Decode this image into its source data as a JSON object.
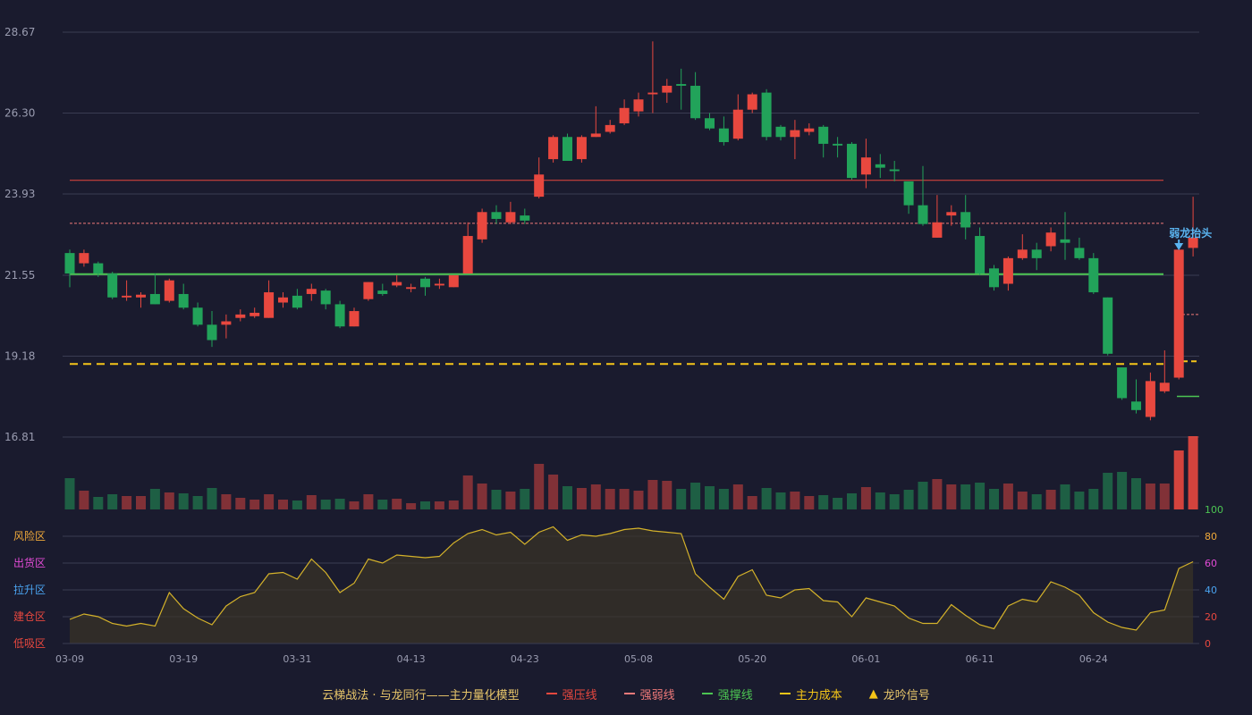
{
  "colors": {
    "background": "#1a1b2e",
    "grid": "#3a3c52",
    "up": "#e8483f",
    "down": "#22a35a",
    "pressure": "#e8483f",
    "weak": "#f07a7a",
    "support": "#4cc552",
    "cost": "#f5c518",
    "osc_line": "#d4b22a",
    "signal": "#5ab4f0",
    "axis_text": "#9a9cb0"
  },
  "chart_data": {
    "type": "candlestick",
    "title": "",
    "price_axis": {
      "ticks": [
        28.67,
        26.3,
        23.93,
        21.55,
        19.18,
        16.81
      ],
      "range": [
        16.81,
        28.67
      ]
    },
    "date_ticks": [
      {
        "label": "03-09",
        "index": 0
      },
      {
        "label": "03-19",
        "index": 8
      },
      {
        "label": "03-31",
        "index": 16
      },
      {
        "label": "04-13",
        "index": 24
      },
      {
        "label": "04-23",
        "index": 32
      },
      {
        "label": "05-08",
        "index": 40
      },
      {
        "label": "05-20",
        "index": 48
      },
      {
        "label": "06-01",
        "index": 56
      },
      {
        "label": "06-11",
        "index": 64
      },
      {
        "label": "06-24",
        "index": 72
      }
    ],
    "candles": [
      [
        22.2,
        21.6,
        22.3,
        21.2
      ],
      [
        21.9,
        22.2,
        22.3,
        21.8
      ],
      [
        21.9,
        21.6,
        21.95,
        21.5
      ],
      [
        21.6,
        20.9,
        21.65,
        20.85
      ],
      [
        20.9,
        20.95,
        21.4,
        20.8
      ],
      [
        20.9,
        20.98,
        21.05,
        20.6
      ],
      [
        21.0,
        20.7,
        21.6,
        20.7
      ],
      [
        20.8,
        21.4,
        21.45,
        20.75
      ],
      [
        21.0,
        20.6,
        21.3,
        20.55
      ],
      [
        20.6,
        20.1,
        20.75,
        20.05
      ],
      [
        20.1,
        19.65,
        20.5,
        19.45
      ],
      [
        20.1,
        20.2,
        20.4,
        19.7
      ],
      [
        20.3,
        20.4,
        20.55,
        20.2
      ],
      [
        20.35,
        20.45,
        20.6,
        20.3
      ],
      [
        20.3,
        21.05,
        21.4,
        20.3
      ],
      [
        20.75,
        20.9,
        21.05,
        20.6
      ],
      [
        20.95,
        20.6,
        21.15,
        20.55
      ],
      [
        21.0,
        21.15,
        21.3,
        20.8
      ],
      [
        21.1,
        20.7,
        21.15,
        20.55
      ],
      [
        20.7,
        20.05,
        20.8,
        20.0
      ],
      [
        20.05,
        20.5,
        20.6,
        20.05
      ],
      [
        20.85,
        21.35,
        21.35,
        20.8
      ],
      [
        21.1,
        21.0,
        21.3,
        20.95
      ],
      [
        21.25,
        21.35,
        21.55,
        21.2
      ],
      [
        21.15,
        21.2,
        21.3,
        21.05
      ],
      [
        21.45,
        21.2,
        21.5,
        20.95
      ],
      [
        21.25,
        21.3,
        21.45,
        21.15
      ],
      [
        21.2,
        21.55,
        21.55,
        21.2
      ],
      [
        21.6,
        22.7,
        23.1,
        21.6
      ],
      [
        22.6,
        23.4,
        23.5,
        22.5
      ],
      [
        23.4,
        23.2,
        23.6,
        23.05
      ],
      [
        23.1,
        23.4,
        23.7,
        23.05
      ],
      [
        23.3,
        23.15,
        23.5,
        23.05
      ],
      [
        23.85,
        24.5,
        25.0,
        23.8
      ],
      [
        24.95,
        25.6,
        25.65,
        24.85
      ],
      [
        25.6,
        24.9,
        25.7,
        24.9
      ],
      [
        24.95,
        25.6,
        25.65,
        24.85
      ],
      [
        25.6,
        25.7,
        26.5,
        25.6
      ],
      [
        25.75,
        25.95,
        26.1,
        25.7
      ],
      [
        26.0,
        26.45,
        26.7,
        25.95
      ],
      [
        26.35,
        26.7,
        26.9,
        26.2
      ],
      [
        26.85,
        26.9,
        28.4,
        26.3
      ],
      [
        26.9,
        27.1,
        27.3,
        26.6
      ],
      [
        27.15,
        27.1,
        27.6,
        26.4
      ],
      [
        27.1,
        26.15,
        27.5,
        26.1
      ],
      [
        26.15,
        25.85,
        26.3,
        25.8
      ],
      [
        25.85,
        25.45,
        26.2,
        25.35
      ],
      [
        25.55,
        26.4,
        26.85,
        25.5
      ],
      [
        26.4,
        26.85,
        26.9,
        26.3
      ],
      [
        26.9,
        25.6,
        27.0,
        25.5
      ],
      [
        25.9,
        25.6,
        25.95,
        25.5
      ],
      [
        25.6,
        25.8,
        26.1,
        24.95
      ],
      [
        25.75,
        25.85,
        26.0,
        25.65
      ],
      [
        25.9,
        25.4,
        25.95,
        25.0
      ],
      [
        25.4,
        25.35,
        25.6,
        25.0
      ],
      [
        25.4,
        24.4,
        25.45,
        24.35
      ],
      [
        24.5,
        25.0,
        25.55,
        24.1
      ],
      [
        24.8,
        24.7,
        25.1,
        24.4
      ],
      [
        24.65,
        24.6,
        24.9,
        24.3
      ],
      [
        24.3,
        23.6,
        24.3,
        23.35
      ],
      [
        23.6,
        23.05,
        24.75,
        23.0
      ],
      [
        22.65,
        23.1,
        23.9,
        22.65
      ],
      [
        23.3,
        23.4,
        23.6,
        23.0
      ],
      [
        23.4,
        22.95,
        23.9,
        22.6
      ],
      [
        22.7,
        21.6,
        22.95,
        21.55
      ],
      [
        21.75,
        21.2,
        21.85,
        21.1
      ],
      [
        21.3,
        22.05,
        22.1,
        21.1
      ],
      [
        22.05,
        22.3,
        22.75,
        22.0
      ],
      [
        22.3,
        22.05,
        22.5,
        21.7
      ],
      [
        22.4,
        22.8,
        22.95,
        22.25
      ],
      [
        22.6,
        22.5,
        23.4,
        22.0
      ],
      [
        22.35,
        22.05,
        22.65,
        22.0
      ],
      [
        22.05,
        21.05,
        22.2,
        21.0
      ],
      [
        20.9,
        19.25,
        20.9,
        19.2
      ],
      [
        18.85,
        17.95,
        18.85,
        17.9
      ],
      [
        17.85,
        17.6,
        18.5,
        17.5
      ],
      [
        17.4,
        18.45,
        18.7,
        17.3
      ],
      [
        18.15,
        18.4,
        19.35,
        18.1
      ],
      [
        18.55,
        22.3,
        22.3,
        18.5
      ],
      [
        22.35,
        22.65,
        23.85,
        22.1
      ]
    ],
    "volume": [
      3.5,
      2.1,
      1.4,
      1.7,
      1.5,
      1.5,
      2.3,
      1.9,
      1.8,
      1.5,
      2.4,
      1.7,
      1.3,
      1.1,
      1.7,
      1.1,
      1.0,
      1.6,
      1.1,
      1.2,
      0.9,
      1.7,
      1.1,
      1.2,
      0.7,
      0.9,
      0.9,
      1.0,
      3.8,
      2.9,
      2.2,
      2.0,
      2.3,
      5.1,
      3.9,
      2.6,
      2.4,
      2.8,
      2.3,
      2.3,
      2.1,
      3.3,
      3.2,
      2.3,
      3.0,
      2.6,
      2.3,
      2.8,
      1.5,
      2.4,
      1.9,
      2.0,
      1.5,
      1.6,
      1.3,
      1.8,
      2.5,
      1.9,
      1.7,
      2.2,
      3.1,
      3.4,
      2.8,
      2.8,
      3.0,
      2.3,
      2.9,
      2.0,
      1.7,
      2.2,
      2.8,
      2.0,
      2.3,
      4.1,
      4.2,
      3.5,
      2.9,
      2.9,
      6.6,
      8.2
    ],
    "oscillator": {
      "labels": [
        "风险区",
        "出货区",
        "拉升区",
        "建仓区",
        "低吸区"
      ],
      "right_ticks": [
        100,
        80,
        60,
        40,
        20,
        0
      ],
      "values": [
        18,
        22,
        20,
        15,
        13,
        15,
        13,
        38,
        26,
        19,
        14,
        28,
        35,
        38,
        52,
        53,
        48,
        63,
        53,
        38,
        45,
        63,
        60,
        66,
        65,
        64,
        65,
        75,
        82,
        85,
        81,
        83,
        74,
        83,
        87,
        77,
        81,
        80,
        82,
        85,
        86,
        84,
        83,
        82,
        52,
        42,
        33,
        50,
        55,
        36,
        34,
        40,
        41,
        32,
        31,
        20,
        34,
        31,
        28,
        19,
        15,
        15,
        29,
        21,
        14,
        11,
        28,
        33,
        31,
        46,
        42,
        36,
        23,
        16,
        12,
        10,
        23,
        25,
        56,
        61
      ]
    },
    "lines": {
      "pressure": 24.33,
      "weak": 23.07,
      "support": 21.58,
      "cost": 18.95,
      "weak_recent": 20.4,
      "cost_recent": 19.03,
      "support_recent": 18.0
    },
    "signal_label": "弱龙抬头"
  },
  "legend": [
    {
      "key": "model",
      "label": "云梯战法 · 与龙同行——主力量化模型"
    },
    {
      "key": "pressure",
      "label": "强压线"
    },
    {
      "key": "weak",
      "label": "强弱线"
    },
    {
      "key": "support",
      "label": "强撑线"
    },
    {
      "key": "cost",
      "label": "主力成本"
    },
    {
      "key": "signal",
      "label": "龙吟信号"
    }
  ]
}
